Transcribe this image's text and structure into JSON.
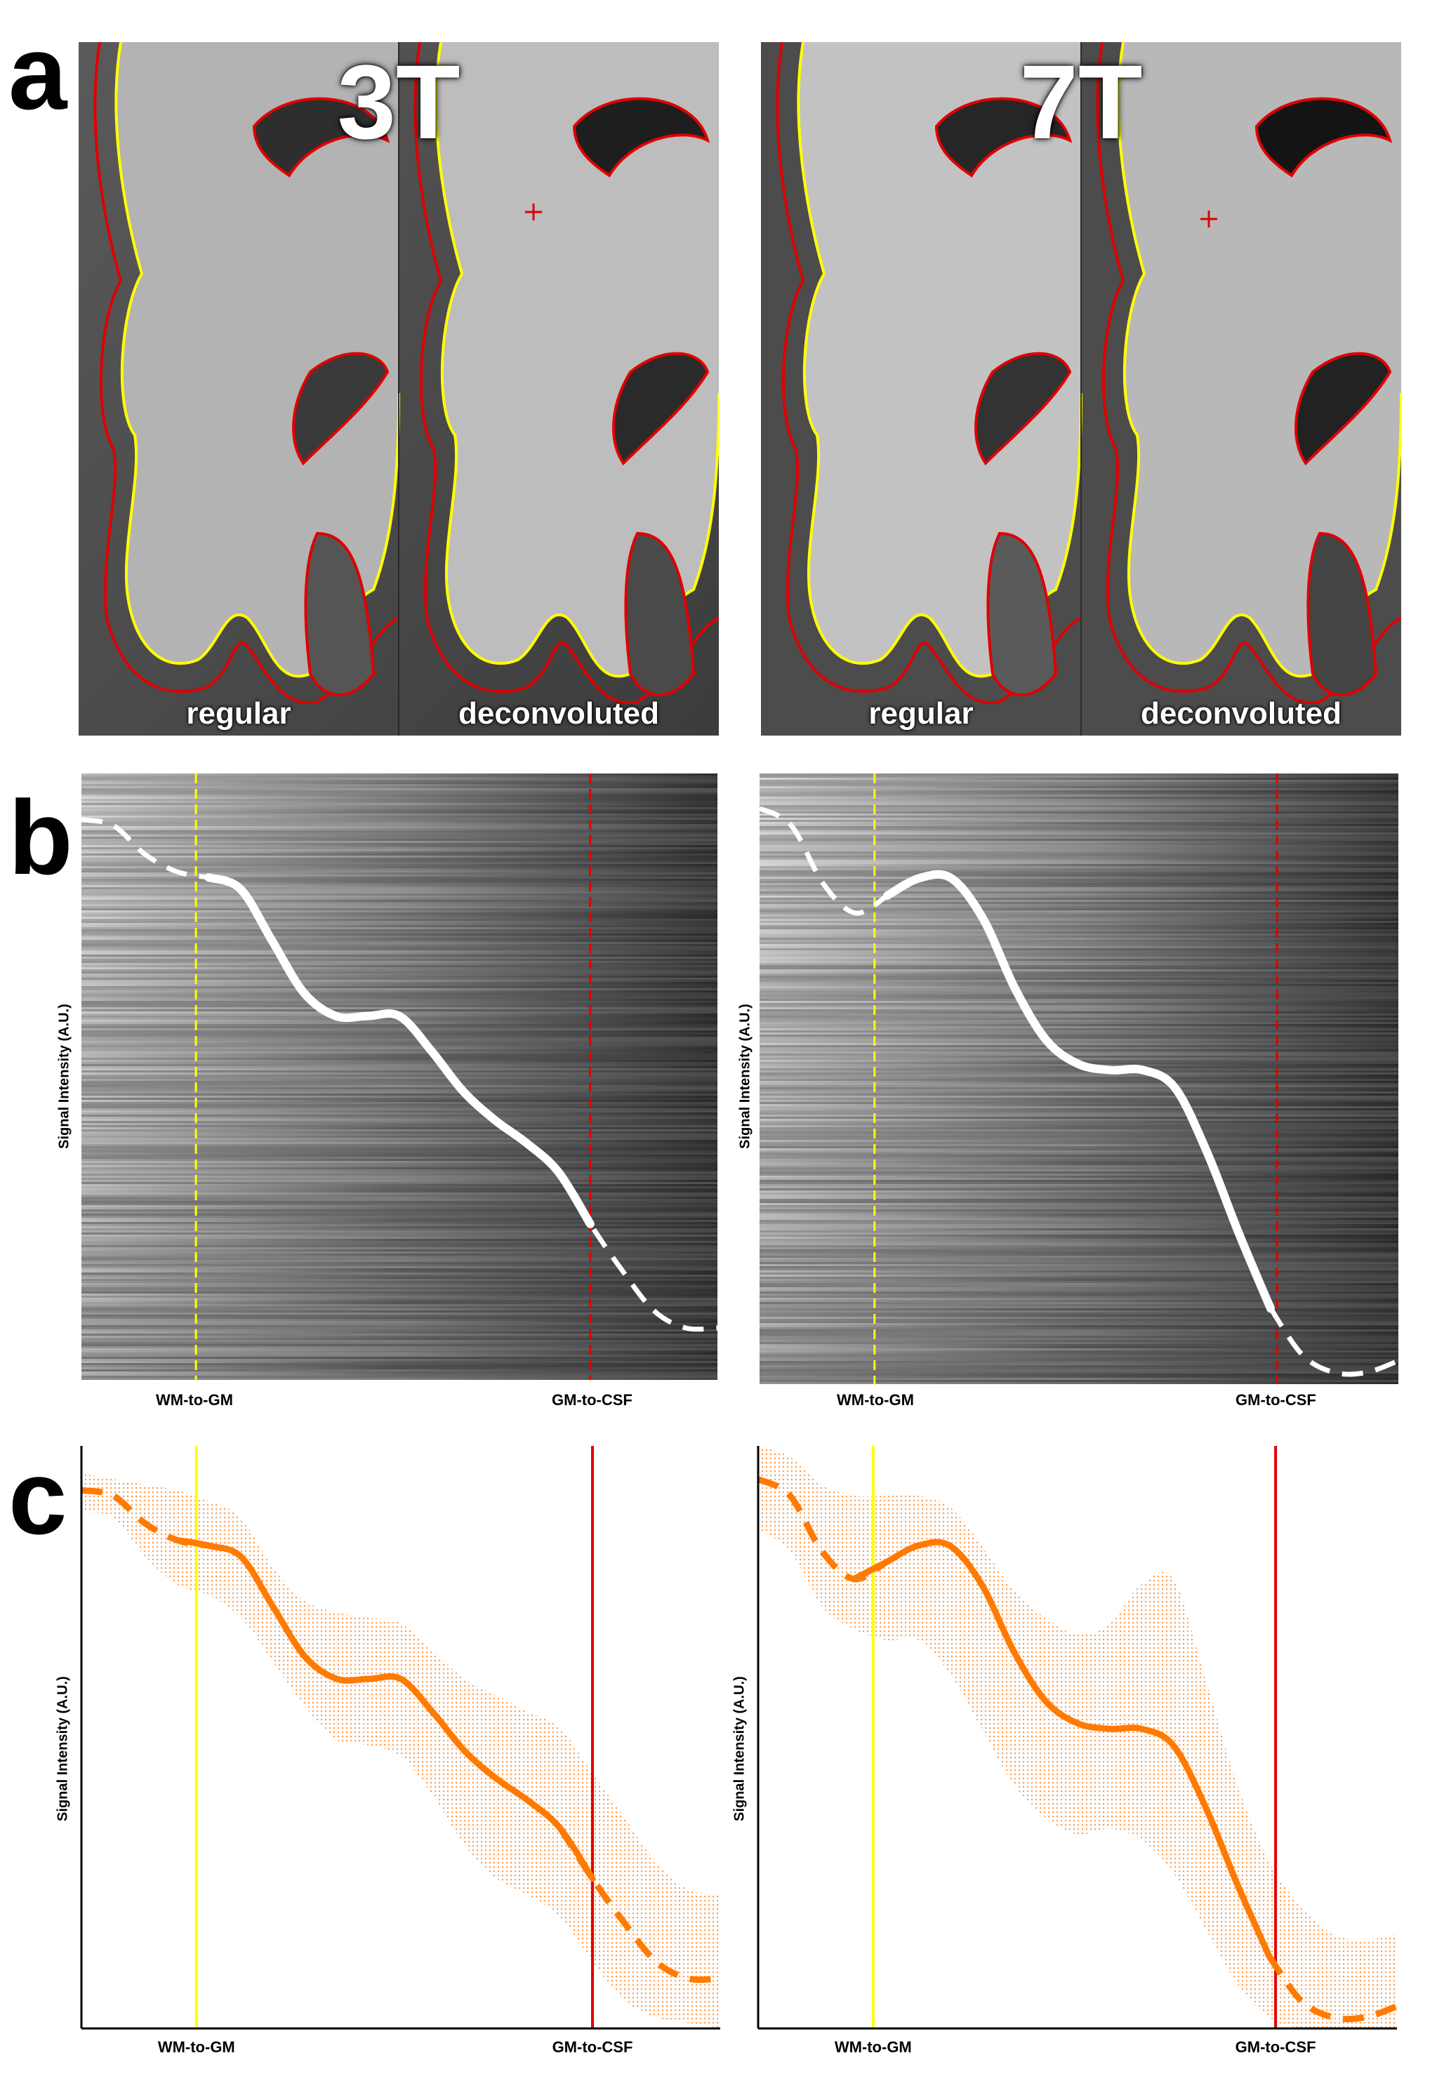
{
  "panel_letters": {
    "a": "a",
    "b": "b",
    "c": "c"
  },
  "fields": [
    {
      "tag": "3T",
      "left_label": "regular",
      "right_label": "deconvoluted"
    },
    {
      "tag": "7T",
      "left_label": "regular",
      "right_label": "deconvoluted"
    }
  ],
  "colors": {
    "wm_boundary": "#ffff00",
    "csf_boundary": "#e00000",
    "profile_line_b": "#ffffff",
    "profile_line_c": "#ff7a00",
    "profile_band_c": "#ff9a4a"
  },
  "profile_plots_b": [
    {
      "ylabel": "Signal Intensity (A.U.)",
      "xlabels": [
        "WM-to-GM",
        "GM-to-CSF"
      ]
    },
    {
      "ylabel": "Signal Intensity (A.U.)",
      "xlabels": [
        "WM-to-GM",
        "GM-to-CSF"
      ]
    }
  ],
  "chart_data": [
    {
      "type": "line",
      "title": "",
      "xlabel": "",
      "ylabel": "Signal Intensity (A.U.)",
      "tick_labels": [
        "WM-to-GM",
        "GM-to-CSF"
      ],
      "x": [
        0.0,
        0.05,
        0.1,
        0.15,
        0.2,
        0.25,
        0.3,
        0.35,
        0.4,
        0.45,
        0.5,
        0.55,
        0.6,
        0.65,
        0.7,
        0.75,
        0.8,
        0.85,
        0.9,
        0.95,
        1.0
      ],
      "series": [
        {
          "values": [
            0.97,
            0.96,
            0.91,
            0.88,
            0.87,
            0.85,
            0.76,
            0.67,
            0.63,
            0.63,
            0.63,
            0.57,
            0.5,
            0.45,
            0.41,
            0.36,
            0.27,
            0.19,
            0.12,
            0.09,
            0.09
          ]
        }
      ],
      "band_upper": [
        1.0,
        0.99,
        0.98,
        0.97,
        0.95,
        0.92,
        0.83,
        0.77,
        0.75,
        0.74,
        0.73,
        0.68,
        0.63,
        0.6,
        0.57,
        0.54,
        0.46,
        0.38,
        0.3,
        0.25,
        0.24
      ],
      "band_lower": [
        0.93,
        0.92,
        0.85,
        0.8,
        0.78,
        0.74,
        0.66,
        0.58,
        0.52,
        0.51,
        0.49,
        0.42,
        0.33,
        0.27,
        0.24,
        0.2,
        0.12,
        0.05,
        0.02,
        0.01,
        0.0
      ],
      "boundaries": {
        "wm_to_gm": 0.18,
        "gm_to_csf": 0.8
      },
      "ylim": [
        0,
        1.05
      ],
      "xlim": [
        0,
        1
      ],
      "grid": false
    },
    {
      "type": "line",
      "title": "",
      "xlabel": "",
      "ylabel": "Signal Intensity (A.U.)",
      "tick_labels": [
        "WM-to-GM",
        "GM-to-CSF"
      ],
      "x": [
        0.0,
        0.05,
        0.1,
        0.15,
        0.2,
        0.25,
        0.3,
        0.35,
        0.4,
        0.45,
        0.5,
        0.55,
        0.6,
        0.65,
        0.7,
        0.75,
        0.8,
        0.85,
        0.9,
        0.95,
        1.0
      ],
      "series": [
        {
          "values": [
            0.99,
            0.96,
            0.86,
            0.81,
            0.84,
            0.87,
            0.87,
            0.8,
            0.68,
            0.59,
            0.55,
            0.54,
            0.54,
            0.51,
            0.4,
            0.26,
            0.13,
            0.05,
            0.02,
            0.02,
            0.04
          ]
        }
      ],
      "band_upper": [
        1.05,
        1.03,
        0.98,
        0.96,
        0.96,
        0.96,
        0.94,
        0.87,
        0.79,
        0.74,
        0.71,
        0.73,
        0.8,
        0.81,
        0.63,
        0.44,
        0.3,
        0.22,
        0.17,
        0.16,
        0.17
      ],
      "band_lower": [
        0.9,
        0.86,
        0.76,
        0.72,
        0.7,
        0.7,
        0.64,
        0.54,
        0.44,
        0.38,
        0.35,
        0.36,
        0.34,
        0.28,
        0.18,
        0.08,
        0.02,
        0.0,
        0.0,
        0.0,
        0.0
      ],
      "boundaries": {
        "wm_to_gm": 0.18,
        "gm_to_csf": 0.81
      },
      "ylim": [
        0,
        1.05
      ],
      "xlim": [
        0,
        1
      ],
      "grid": false
    }
  ]
}
